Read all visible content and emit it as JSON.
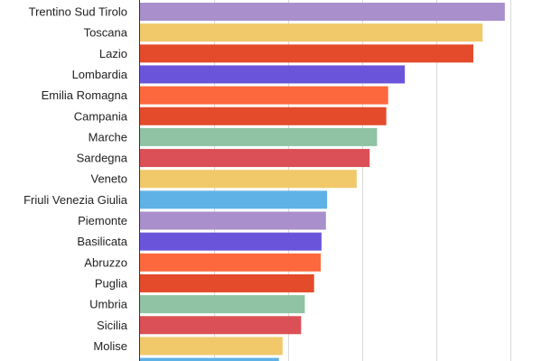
{
  "chart_data": {
    "type": "bar",
    "orientation": "horizontal",
    "title": "",
    "xlabel": "",
    "ylabel": "",
    "xlim": [
      0,
      100
    ],
    "grid": true,
    "legend": "none",
    "categories": [
      "Trentino Sud Tirolo",
      "Toscana",
      "Lazio",
      "Lombardia",
      "Emilia Romagna",
      "Campania",
      "Marche",
      "Sardegna",
      "Veneto",
      "Friuli Venezia Giulia",
      "Piemonte",
      "Basilicata",
      "Abruzzo",
      "Puglia",
      "Umbria",
      "Sicilia",
      "Molise",
      ""
    ],
    "values": [
      98.5,
      92.5,
      90,
      71.5,
      67,
      66.5,
      64,
      62,
      58.5,
      50.5,
      50.2,
      49,
      48.8,
      47,
      44.5,
      43.5,
      38.5,
      37.5
    ],
    "colors": [
      "#a98fcb",
      "#f1c96b",
      "#e44b2b",
      "#6a55da",
      "#fd683d",
      "#e44b2b",
      "#8fc3a3",
      "#db5056",
      "#f1c96b",
      "#5fb2e6",
      "#a98fcb",
      "#6a55da",
      "#fd683d",
      "#e44b2b",
      "#8fc3a3",
      "#db5056",
      "#f1c96b",
      "#5fb2e6"
    ]
  }
}
